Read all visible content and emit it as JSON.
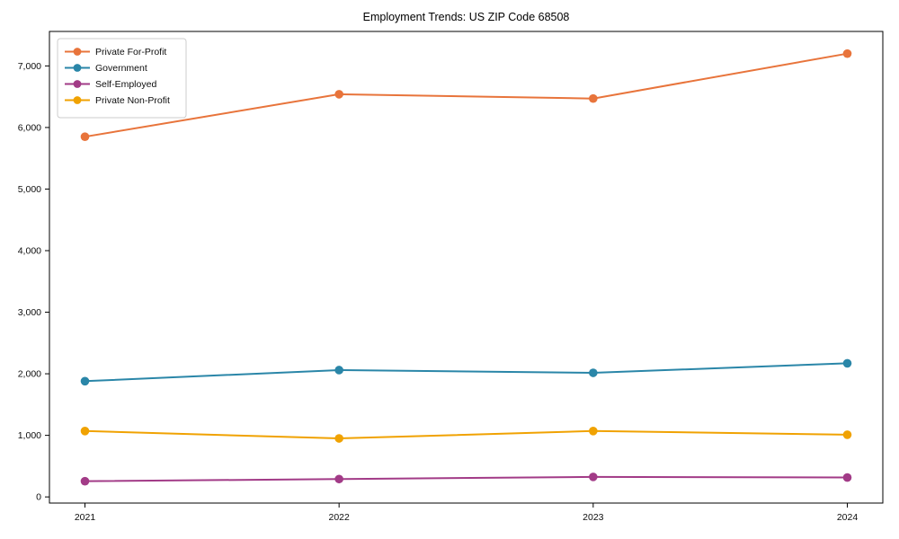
{
  "chart_data": {
    "type": "line",
    "title": "Employment Trends: US ZIP Code 68508",
    "xlabel": "",
    "ylabel": "",
    "grid": false,
    "legend_position": "upper-left",
    "marker": "circle",
    "x_tick_labels": [
      "2021",
      "2022",
      "2023",
      "2024"
    ],
    "x": [
      2021,
      2022,
      2023,
      2024
    ],
    "y_ticks": [
      0,
      1000,
      2000,
      3000,
      4000,
      5000,
      6000,
      7000
    ],
    "y_tick_labels": [
      "0",
      "1,000",
      "2,000",
      "3,000",
      "4,000",
      "5,000",
      "6,000",
      "7,000"
    ],
    "ylim": [
      -100,
      7560
    ],
    "series": [
      {
        "name": "Private For-Profit",
        "color": "#e8743b",
        "values": [
          5850,
          6540,
          6470,
          7200
        ]
      },
      {
        "name": "Government",
        "color": "#2a86a8",
        "values": [
          1880,
          2060,
          2015,
          2170
        ]
      },
      {
        "name": "Self-Employed",
        "color": "#a23b87",
        "values": [
          255,
          290,
          325,
          315
        ]
      },
      {
        "name": "Private Non-Profit",
        "color": "#f0a202",
        "values": [
          1070,
          950,
          1070,
          1010
        ]
      }
    ]
  }
}
